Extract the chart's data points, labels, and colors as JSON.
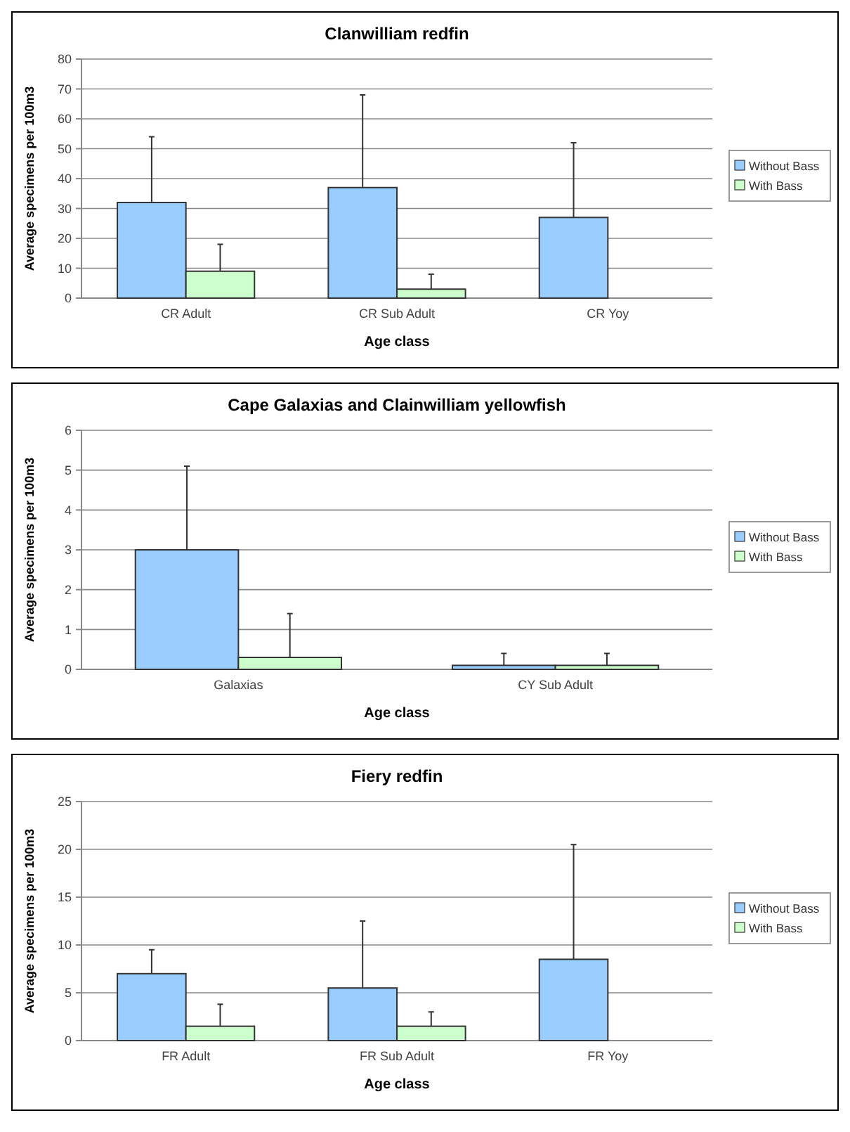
{
  "chart_data": [
    {
      "type": "bar",
      "title": "Clanwilliam redfin",
      "xlabel": "Age class",
      "ylabel": "Average specimens per 100m3",
      "categories": [
        "CR Adult",
        "CR Sub Adult",
        "CR Yoy"
      ],
      "series": [
        {
          "name": "Without Bass",
          "color": "#99ccff",
          "values": [
            32,
            37,
            27
          ],
          "errors": [
            [
              32,
              54
            ],
            [
              37,
              68
            ],
            [
              27,
              52
            ]
          ]
        },
        {
          "name": "With Bass",
          "color": "#ccffcc",
          "values": [
            9,
            3,
            null
          ],
          "errors": [
            [
              9,
              18
            ],
            [
              3,
              8
            ],
            null
          ]
        }
      ],
      "ylim": [
        0,
        80
      ],
      "yticks": [
        0,
        10,
        20,
        30,
        40,
        50,
        60,
        70,
        80
      ],
      "grid": "y",
      "legend": "right"
    },
    {
      "type": "bar",
      "title": "Cape Galaxias and Clainwilliam yellowfish",
      "xlabel": "Age class",
      "ylabel": "Average specimens per 100m3",
      "categories": [
        "Galaxias",
        "CY Sub Adult"
      ],
      "series": [
        {
          "name": "Without Bass",
          "color": "#99ccff",
          "values": [
            3,
            0.1
          ],
          "errors": [
            [
              3,
              5.1
            ],
            [
              0.1,
              0.4
            ]
          ]
        },
        {
          "name": "With Bass",
          "color": "#ccffcc",
          "values": [
            0.3,
            0.1
          ],
          "errors": [
            [
              0.3,
              1.4
            ],
            [
              0.1,
              0.4
            ]
          ]
        }
      ],
      "ylim": [
        0,
        6
      ],
      "yticks": [
        0,
        1,
        2,
        3,
        4,
        5,
        6
      ],
      "grid": "y",
      "legend": "right"
    },
    {
      "type": "bar",
      "title": "Fiery redfin",
      "xlabel": "Age class",
      "ylabel": "Average specimens per 100m3",
      "categories": [
        "FR Adult",
        "FR Sub Adult",
        "FR Yoy"
      ],
      "series": [
        {
          "name": "Without Bass",
          "color": "#99ccff",
          "values": [
            7,
            5.5,
            8.5
          ],
          "errors": [
            [
              7,
              9.5
            ],
            [
              5.5,
              12.5
            ],
            [
              8.5,
              20.5
            ]
          ]
        },
        {
          "name": "With Bass",
          "color": "#ccffcc",
          "values": [
            1.5,
            1.5,
            null
          ],
          "errors": [
            [
              1.5,
              3.8
            ],
            [
              1.5,
              3
            ],
            null
          ]
        }
      ],
      "ylim": [
        0,
        25
      ],
      "yticks": [
        0,
        5,
        10,
        15,
        20,
        25
      ],
      "grid": "y",
      "legend": "right"
    }
  ]
}
